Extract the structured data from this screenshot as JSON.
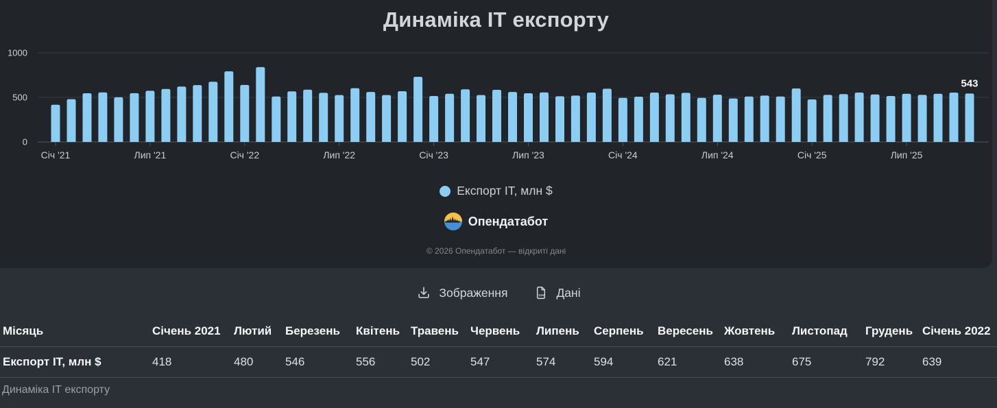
{
  "title": "Динаміка ІТ експорту",
  "legend": {
    "label": "Експорт ІТ, млн $",
    "color": "#8ccdf4"
  },
  "branding": {
    "logo_text": "Опендатабот",
    "copyright": "© 2026 Опендатабот — відкриті дані",
    "logo_colors": {
      "top": "#f6c244",
      "bottom": "#4291d8",
      "wave": "#232830"
    }
  },
  "toolbar": {
    "image_button": "Зображення",
    "data_button": "Дані"
  },
  "chart_data": {
    "type": "bar",
    "title": "Динаміка ІТ експорту",
    "series_name": "Експорт ІТ, млн $",
    "bar_color": "#8ccdf4",
    "grid": true,
    "legend_position": "bottom",
    "ylim": [
      0,
      1000
    ],
    "yticks": [
      0,
      500,
      1000
    ],
    "x_tick_every": 6,
    "x_tick_labels": [
      "Січ '21",
      "Лип '21",
      "Січ '22",
      "Лип '22",
      "Січ '23",
      "Лип '23",
      "Січ '24",
      "Лип '24",
      "Січ '25",
      "Лип '25"
    ],
    "x": [
      "2021-01",
      "2021-02",
      "2021-03",
      "2021-04",
      "2021-05",
      "2021-06",
      "2021-07",
      "2021-08",
      "2021-09",
      "2021-10",
      "2021-11",
      "2021-12",
      "2022-01",
      "2022-02",
      "2022-03",
      "2022-04",
      "2022-05",
      "2022-06",
      "2022-07",
      "2022-08",
      "2022-09",
      "2022-10",
      "2022-11",
      "2022-12",
      "2023-01",
      "2023-02",
      "2023-03",
      "2023-04",
      "2023-05",
      "2023-06",
      "2023-07",
      "2023-08",
      "2023-09",
      "2023-10",
      "2023-11",
      "2023-12",
      "2024-01",
      "2024-02",
      "2024-03",
      "2024-04",
      "2024-05",
      "2024-06",
      "2024-07",
      "2024-08",
      "2024-09",
      "2024-10",
      "2024-11",
      "2024-12",
      "2025-01",
      "2025-02",
      "2025-03",
      "2025-04",
      "2025-05",
      "2025-06",
      "2025-07",
      "2025-08",
      "2025-09",
      "2025-10",
      "2025-11"
    ],
    "values": [
      418,
      480,
      546,
      556,
      502,
      547,
      574,
      594,
      621,
      638,
      675,
      792,
      639,
      839,
      510,
      567,
      587,
      551,
      526,
      603,
      561,
      526,
      569,
      731,
      515,
      541,
      590,
      526,
      585,
      561,
      546,
      556,
      512,
      520,
      554,
      597,
      494,
      508,
      554,
      535,
      551,
      494,
      530,
      488,
      510,
      520,
      510,
      600,
      477,
      528,
      536,
      554,
      533,
      515,
      541,
      528,
      541,
      554,
      543
    ],
    "last_value_label": "543"
  },
  "table": {
    "header": [
      "Місяць",
      "Січень 2021",
      "Лютий",
      "Березень",
      "Квітень",
      "Травень",
      "Червень",
      "Липень",
      "Серпень",
      "Вересень",
      "Жовтень",
      "Листопад",
      "Грудень",
      "Січень 2022"
    ],
    "rows": [
      [
        "Експорт ІТ, млн $",
        "418",
        "480",
        "546",
        "556",
        "502",
        "547",
        "574",
        "594",
        "621",
        "638",
        "675",
        "792",
        "639"
      ]
    ],
    "caption": "Динаміка ІТ експорту"
  }
}
